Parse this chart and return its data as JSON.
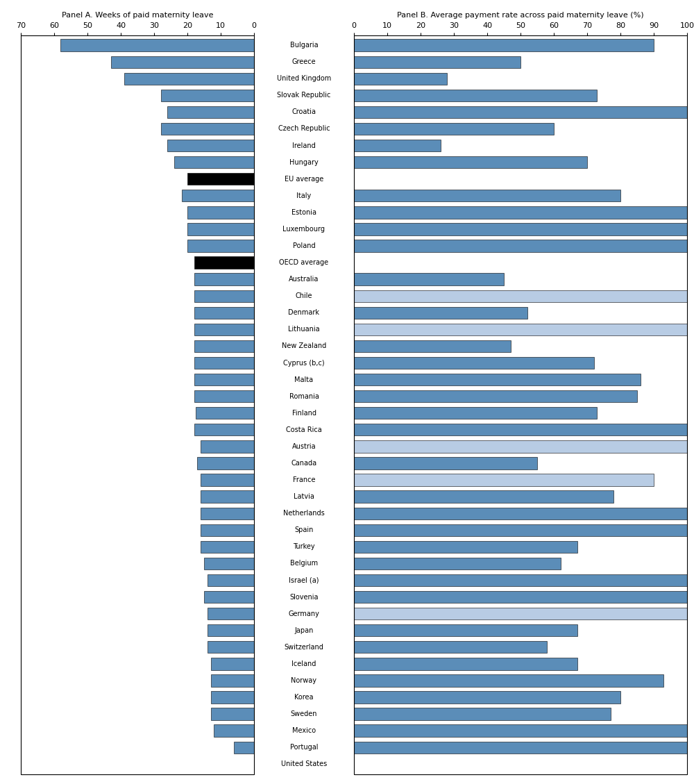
{
  "countries": [
    "Bulgaria",
    "Greece",
    "United Kingdom",
    "Slovak Republic",
    "Croatia",
    "Czech Republic",
    "Ireland",
    "Hungary",
    "EU average",
    "Italy",
    "Estonia",
    "Luxembourg",
    "Poland",
    "OECD average",
    "Australia",
    "Chile",
    "Denmark",
    "Lithuania",
    "New Zealand",
    "Cyprus (b,c)",
    "Malta",
    "Romania",
    "Finland",
    "Costa Rica",
    "Austria",
    "Canada",
    "France",
    "Latvia",
    "Netherlands",
    "Spain",
    "Turkey",
    "Belgium",
    "Israel (a)",
    "Slovenia",
    "Germany",
    "Japan",
    "Switzerland",
    "Iceland",
    "Norway",
    "Korea",
    "Sweden",
    "Mexico",
    "Portugal",
    "United States"
  ],
  "panel_a_weeks": [
    58.1,
    43.0,
    39.0,
    28.0,
    26.0,
    28.0,
    26.0,
    24.0,
    20.0,
    21.7,
    20.0,
    20.0,
    20.0,
    18.0,
    18.0,
    18.0,
    18.0,
    18.0,
    18.0,
    18.0,
    18.0,
    18.0,
    17.5,
    18.0,
    16.0,
    17.0,
    16.0,
    16.0,
    16.0,
    16.0,
    16.0,
    15.0,
    14.0,
    15.0,
    14.0,
    14.0,
    14.0,
    13.0,
    13.0,
    13.0,
    13.0,
    12.0,
    6.0,
    0.0
  ],
  "panel_a_colors": [
    "#5b8db8",
    "#5b8db8",
    "#5b8db8",
    "#5b8db8",
    "#5b8db8",
    "#5b8db8",
    "#5b8db8",
    "#5b8db8",
    "#000000",
    "#5b8db8",
    "#5b8db8",
    "#5b8db8",
    "#5b8db8",
    "#000000",
    "#5b8db8",
    "#5b8db8",
    "#5b8db8",
    "#5b8db8",
    "#5b8db8",
    "#5b8db8",
    "#5b8db8",
    "#5b8db8",
    "#5b8db8",
    "#5b8db8",
    "#5b8db8",
    "#5b8db8",
    "#5b8db8",
    "#5b8db8",
    "#5b8db8",
    "#5b8db8",
    "#5b8db8",
    "#5b8db8",
    "#5b8db8",
    "#5b8db8",
    "#5b8db8",
    "#5b8db8",
    "#5b8db8",
    "#5b8db8",
    "#5b8db8",
    "#5b8db8",
    "#5b8db8",
    "#5b8db8",
    "#5b8db8",
    "#5b8db8"
  ],
  "panel_b_rate": [
    90.0,
    50.0,
    28.0,
    73.0,
    100.0,
    60.0,
    26.0,
    70.0,
    0.0,
    80.0,
    100.0,
    100.0,
    100.0,
    0.0,
    45.0,
    100.0,
    52.0,
    100.0,
    47.0,
    72.0,
    86.0,
    85.0,
    73.0,
    100.0,
    100.0,
    55.0,
    90.0,
    78.0,
    100.0,
    100.0,
    67.0,
    62.0,
    100.0,
    100.0,
    100.0,
    67.0,
    58.0,
    67.0,
    93.0,
    80.0,
    77.0,
    100.0,
    100.0,
    0.0
  ],
  "panel_b_colors": [
    "#5b8db8",
    "#5b8db8",
    "#5b8db8",
    "#5b8db8",
    "#5b8db8",
    "#5b8db8",
    "#5b8db8",
    "#5b8db8",
    "#ffffff",
    "#5b8db8",
    "#5b8db8",
    "#5b8db8",
    "#5b8db8",
    "#ffffff",
    "#5b8db8",
    "#b8cce4",
    "#5b8db8",
    "#b8cce4",
    "#5b8db8",
    "#5b8db8",
    "#5b8db8",
    "#5b8db8",
    "#5b8db8",
    "#5b8db8",
    "#b8cce4",
    "#5b8db8",
    "#b8cce4",
    "#5b8db8",
    "#5b8db8",
    "#5b8db8",
    "#5b8db8",
    "#5b8db8",
    "#5b8db8",
    "#5b8db8",
    "#b8cce4",
    "#5b8db8",
    "#5b8db8",
    "#5b8db8",
    "#5b8db8",
    "#5b8db8",
    "#5b8db8",
    "#5b8db8",
    "#5b8db8",
    "#ffffff"
  ],
  "panel_a_title": "Panel A. Weeks of paid maternity leave",
  "panel_b_title": "Panel B. Average payment rate across paid maternity leave (%)",
  "panel_a_xticks": [
    70,
    60,
    50,
    40,
    30,
    20,
    10,
    0
  ],
  "panel_b_xticks": [
    0,
    10,
    20,
    30,
    40,
    50,
    60,
    70,
    80,
    90,
    100
  ]
}
